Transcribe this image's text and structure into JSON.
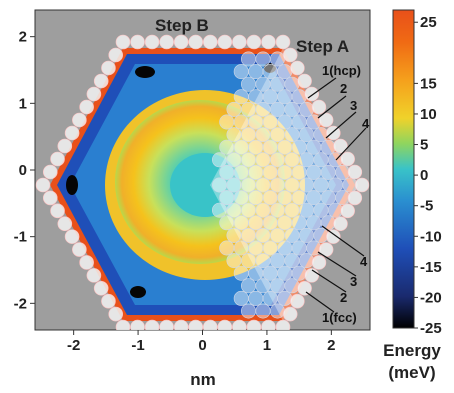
{
  "chart_data": {
    "type": "heatmap",
    "title": "",
    "xlabel": "nm",
    "ylabel": "",
    "xlim": [
      -2.6,
      2.6
    ],
    "ylim": [
      -2.4,
      2.4
    ],
    "x_ticks": [
      "-2",
      "-1",
      "0",
      "1",
      "2"
    ],
    "y_ticks": [
      "2",
      "1",
      "0",
      "-1",
      "-2"
    ],
    "colorbar": {
      "label_line1": "Energy",
      "label_line2": "(meV)",
      "range": [
        -25,
        27
      ],
      "ticks": [
        "25",
        "15",
        "10",
        "5",
        "0",
        "-5",
        "-10",
        "-15",
        "-20",
        "-25"
      ],
      "colors": [
        "#000000",
        "#1a2a6e",
        "#1f4fb8",
        "#2a8fd0",
        "#39c3c8",
        "#8fd55e",
        "#f0d22a",
        "#f5a01c",
        "#f06a14",
        "#e8501a"
      ]
    },
    "annotations": {
      "step_b": "Step B",
      "step_a": "Step A",
      "upper_labels": [
        "1(hcp)",
        "2",
        "3",
        "4"
      ],
      "lower_labels": [
        "4",
        "3",
        "2",
        "1(fcc)"
      ]
    },
    "regions": [
      {
        "label": "step terrace corner minima",
        "energy": -25
      },
      {
        "label": "outer rim",
        "energy": -15
      },
      {
        "label": "ring",
        "energy": 10
      },
      {
        "label": "center",
        "energy": -5
      }
    ]
  }
}
